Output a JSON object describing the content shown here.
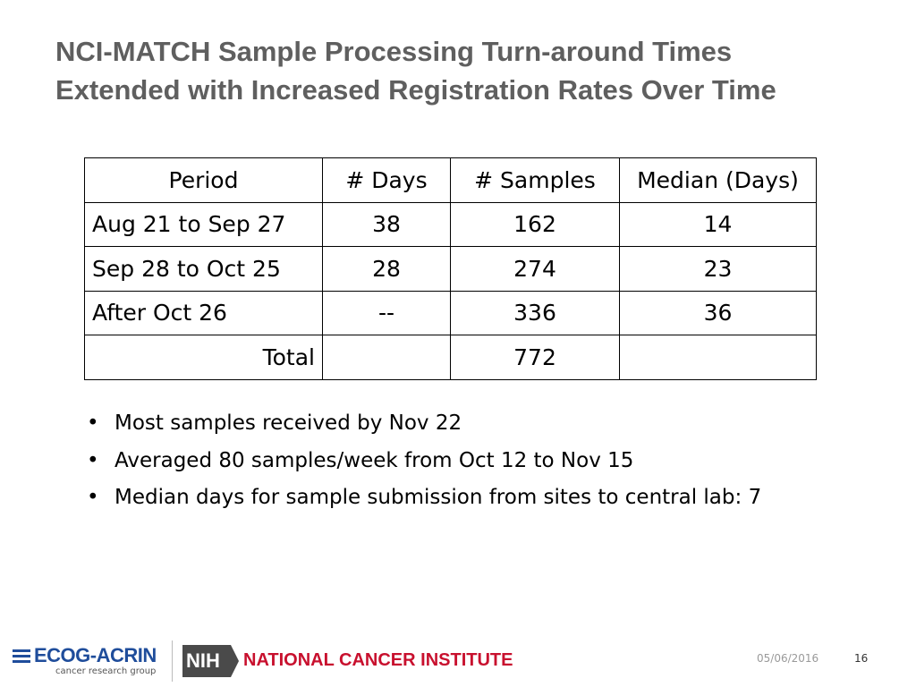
{
  "title": {
    "line1": "NCI-MATCH Sample Processing Turn-around Times",
    "line2": "Extended with Increased Registration Rates Over Time"
  },
  "table": {
    "headers": [
      "Period",
      "# Days",
      "# Samples",
      "Median (Days)"
    ],
    "rows": [
      [
        "Aug 21 to Sep 27",
        "38",
        "162",
        "14"
      ],
      [
        "Sep 28 to Oct 25",
        "28",
        "274",
        "23"
      ],
      [
        "After Oct 26",
        "--",
        "336",
        "36"
      ],
      [
        "Total",
        "",
        "772",
        ""
      ]
    ]
  },
  "bullets": [
    "Most samples received by Nov 22",
    "Averaged 80 samples/week from Oct 12 to Nov 15",
    "Median days for sample submission from sites to central lab: 7"
  ],
  "bullet_glyph": "•",
  "footer": {
    "date": "05/06/2016",
    "page": "16",
    "ecog_name": "ECOG-ACRIN",
    "ecog_sub": "cancer research group",
    "nih_badge": "NIH",
    "nci_name": "NATIONAL CANCER INSTITUTE"
  },
  "colors": {
    "title": "#5f5f5f",
    "ecog_blue": "#1f4d9b",
    "nci_red": "#c8102e",
    "nih_gray": "#4a4a4a"
  }
}
